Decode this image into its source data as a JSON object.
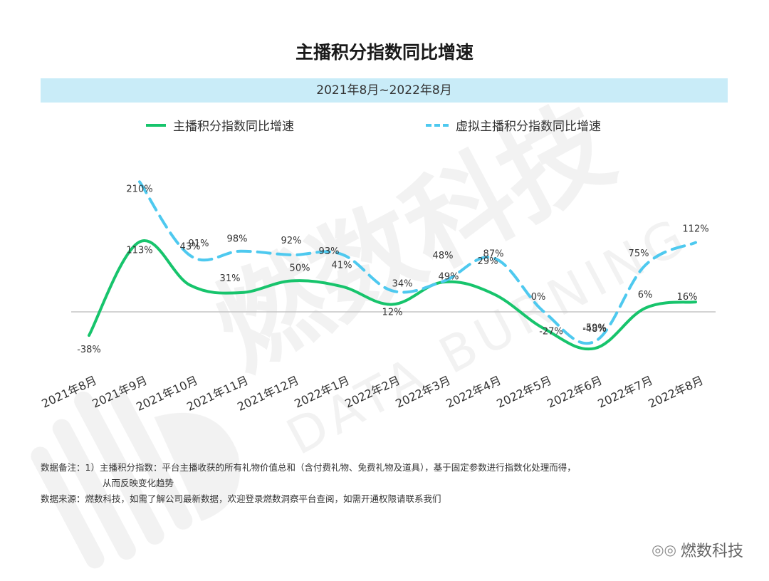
{
  "title": "主播积分指数同比增速",
  "date_range": "2021年8月~2022年8月",
  "legend": {
    "series1": "主播积分指数同比增速",
    "series2": "虚拟主播积分指数同比增速"
  },
  "colors": {
    "series1": "#17c46c",
    "series2": "#4ec9ef",
    "band": "#c9ecf8",
    "baseline": "#bbbbbb"
  },
  "chart_data": {
    "type": "line",
    "categories": [
      "2021年8月",
      "2021年9月",
      "2021年10月",
      "2021年11月",
      "2021年12月",
      "2022年1月",
      "2022年2月",
      "2022年3月",
      "2022年4月",
      "2022年5月",
      "2022年6月",
      "2022年7月",
      "2022年8月"
    ],
    "series": [
      {
        "name": "主播积分指数同比增速",
        "style": "solid",
        "values": [
          -38,
          113,
          43,
          31,
          50,
          41,
          12,
          48,
          29,
          -27,
          -59,
          6,
          16
        ],
        "labels": [
          "-38%",
          "113%",
          "43%",
          "31%",
          "50%",
          "41%",
          "12%",
          "48%",
          "29%",
          "-27%",
          "-59%",
          "6%",
          "16%"
        ]
      },
      {
        "name": "虚拟主播积分指数同比增速",
        "style": "dashed",
        "values": [
          null,
          210,
          91,
          98,
          92,
          93,
          34,
          49,
          87,
          0,
          -48,
          75,
          112
        ],
        "labels": [
          null,
          "210%",
          "91%",
          "98%",
          "92%",
          "93%",
          "34%",
          "49%",
          "87%",
          "0%",
          "-48%",
          "75%",
          "112%"
        ]
      }
    ],
    "ylim": [
      -75,
      215
    ],
    "grid": false,
    "legend_position": "top"
  },
  "notes": {
    "line1": "数据备注：1）主播积分指数：平台主播收获的所有礼物价值总和（含付费礼物、免费礼物及道具），基于固定参数进行指数化处理而得，",
    "line2": "从而反映变化趋势",
    "line3": "数据来源：燃数科技，如需了解公司最新数据，欢迎登录燃数洞察平台查阅，如需开通权限请联系我们"
  },
  "watermark": {
    "cn": "燃数科技",
    "en": "DATA BURNING"
  },
  "brand": "燃数科技",
  "brand_icon": "wechat-icon"
}
